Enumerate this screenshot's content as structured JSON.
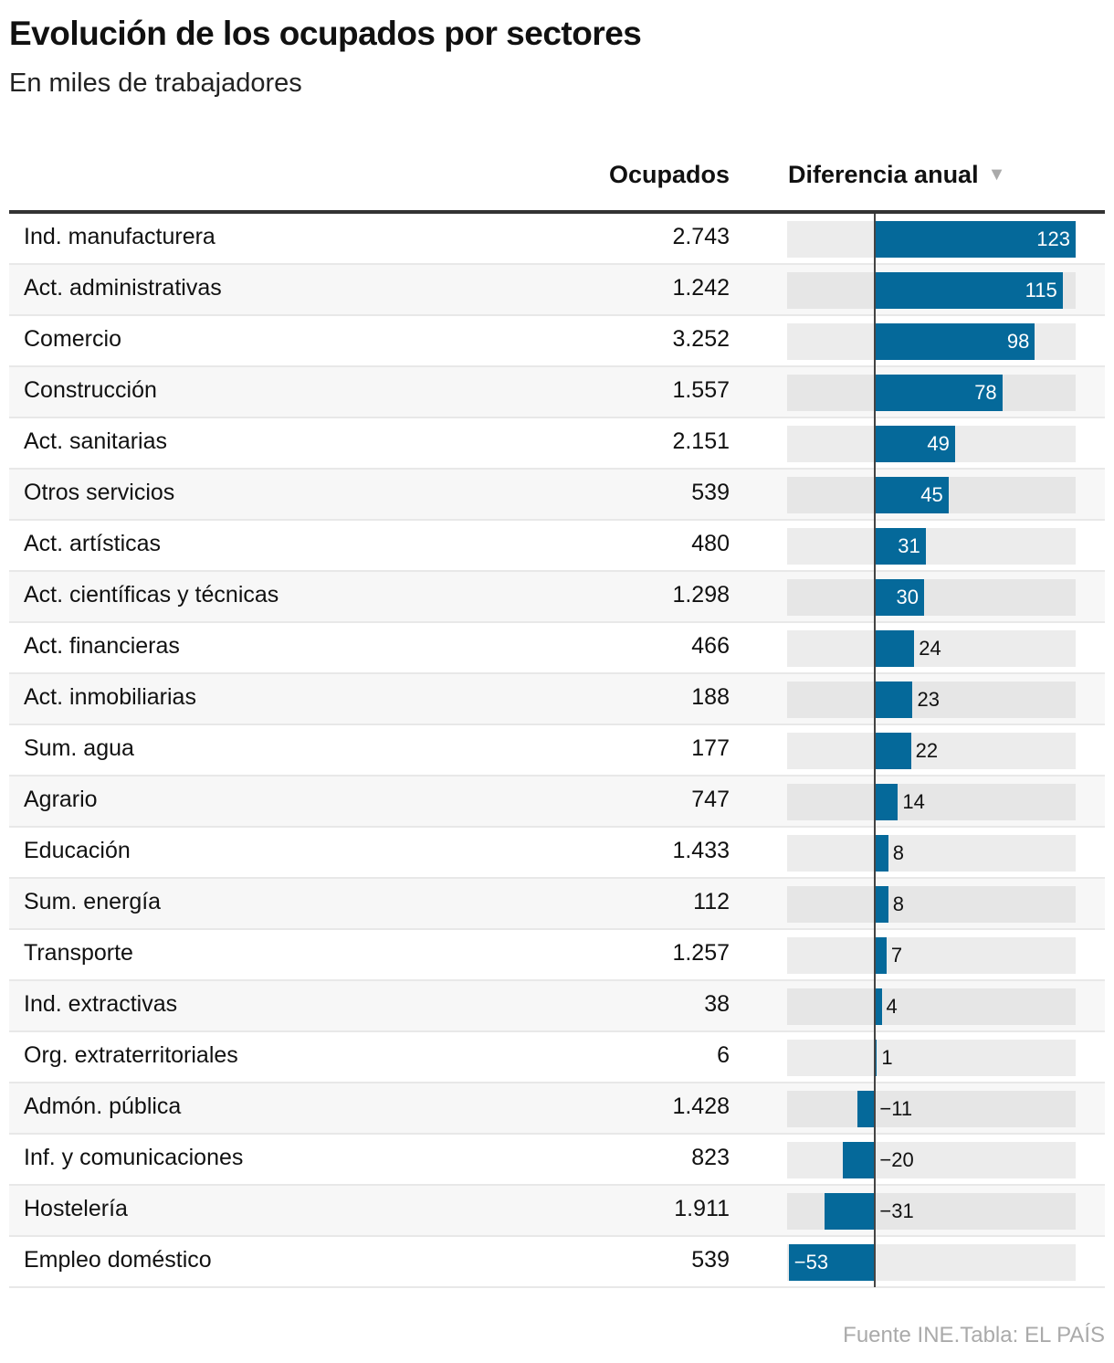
{
  "chart_data": {
    "type": "bar",
    "title": "Evolución de los ocupados por sectores",
    "subtitle": "En miles de trabajadores",
    "columns": {
      "occupied": "Ocupados",
      "diff": "Diferencia anual"
    },
    "sort_indicator": "triangle-down-icon",
    "bar_color": "#05699a",
    "xlim": [
      -54,
      123
    ],
    "categories": [
      "Ind. manufacturera",
      "Act. administrativas",
      "Comercio",
      "Construcción",
      "Act. sanitarias",
      "Otros servicios",
      "Act. artísticas",
      "Act. científicas y técnicas",
      "Act. financieras",
      "Act. inmobiliarias",
      "Sum. agua",
      "Agrario",
      "Educación",
      "Sum. energía",
      "Transporte",
      "Ind. extractivas",
      "Org. extraterritoriales",
      "Admón. pública",
      "Inf. y comunicaciones",
      "Hostelería",
      "Empleo doméstico"
    ],
    "occupied": [
      "2.743",
      "1.242",
      "3.252",
      "1.557",
      "2.151",
      "539",
      "480",
      "1.298",
      "466",
      "188",
      "177",
      "747",
      "1.433",
      "112",
      "1.257",
      "38",
      "6",
      "1.428",
      "823",
      "1.911",
      "539"
    ],
    "values": [
      123,
      115,
      98,
      78,
      49,
      45,
      31,
      30,
      24,
      23,
      22,
      14,
      8,
      8,
      7,
      4,
      1,
      -11,
      -20,
      -31,
      -53
    ],
    "labels": [
      "123",
      "115",
      "98",
      "78",
      "49",
      "45",
      "31",
      "30",
      "24",
      "23",
      "22",
      "14",
      "8",
      "8",
      "7",
      "4",
      "1",
      "−11",
      "−20",
      "−31",
      "−53"
    ]
  },
  "footer": "Fuente INE.Tabla: EL PAÍS"
}
